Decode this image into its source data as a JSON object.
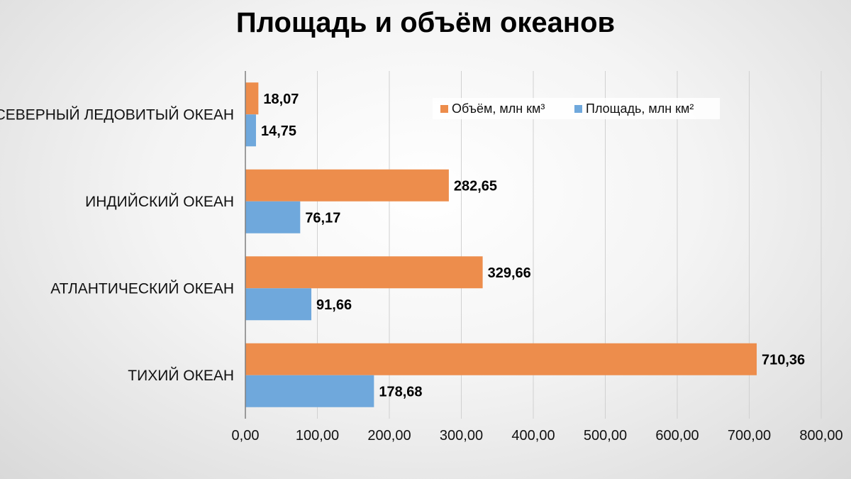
{
  "chart_data": {
    "type": "bar",
    "orientation": "horizontal",
    "title": "Площадь и объём океанов",
    "categories": [
      "СЕВЕРНЫЙ ЛЕДОВИТЫЙ ОКЕАН",
      "ИНДИЙСКИЙ ОКЕАН",
      "АТЛАНТИЧЕСКИЙ ОКЕАН",
      "ТИХИЙ ОКЕАН"
    ],
    "series": [
      {
        "name": "Объём, млн км³",
        "values": [
          18.07,
          282.65,
          329.66,
          710.36
        ],
        "labels": [
          "18,07",
          "282,65",
          "329,66",
          "710,36"
        ],
        "color": "#ED8D4C"
      },
      {
        "name": "Площадь, млн км²",
        "values": [
          14.75,
          76.17,
          91.66,
          178.68
        ],
        "labels": [
          "14,75",
          "76,17",
          "91,66",
          "178,68"
        ],
        "color": "#6FA8DC"
      }
    ],
    "xlim": [
      0,
      800
    ],
    "ticks": [
      0,
      100,
      200,
      300,
      400,
      500,
      600,
      700,
      800
    ],
    "tick_labels": [
      "0,00",
      "100,00",
      "200,00",
      "300,00",
      "400,00",
      "500,00",
      "600,00",
      "700,00",
      "800,00"
    ],
    "grid": true,
    "legend_position": "top-right"
  }
}
